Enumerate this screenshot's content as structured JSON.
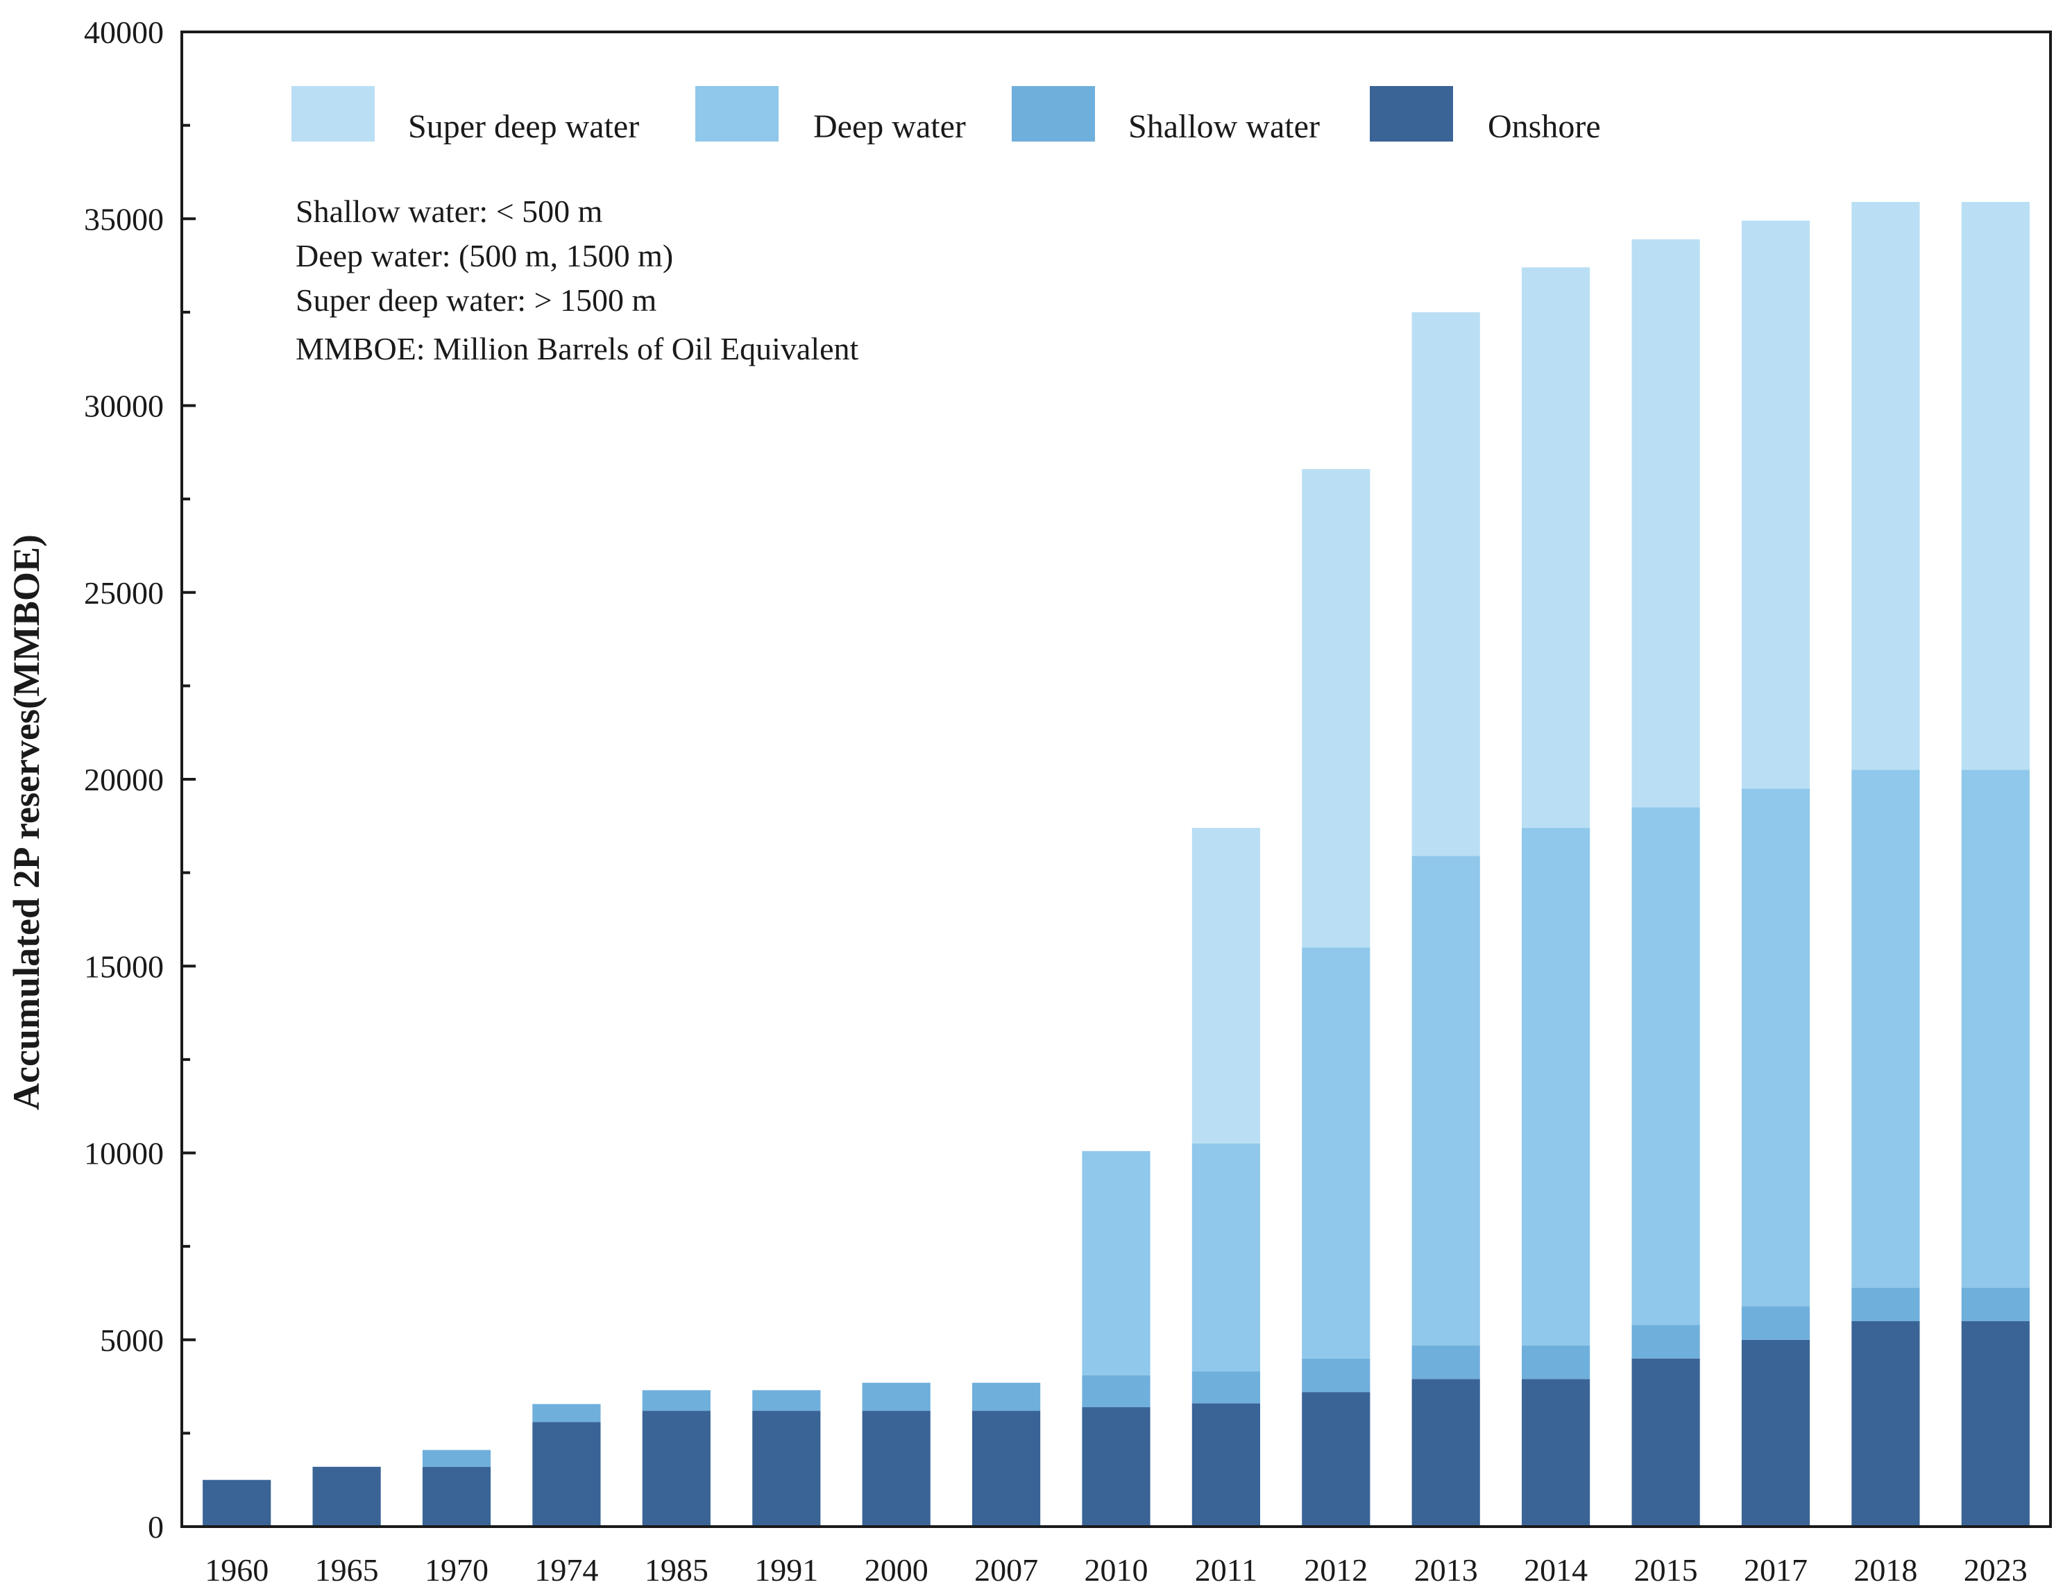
{
  "chart_data": {
    "type": "bar",
    "stacked": true,
    "categories": [
      "1960",
      "1965",
      "1970",
      "1974",
      "1985",
      "1991",
      "2000",
      "2007",
      "2010",
      "2011",
      "2012",
      "2013",
      "2014",
      "2015",
      "2017",
      "2018",
      "2023"
    ],
    "series": [
      {
        "name": "Onshore",
        "color": "#3a6496",
        "values": [
          1250,
          1600,
          1600,
          2800,
          3100,
          3100,
          3100,
          3100,
          3200,
          3300,
          3600,
          3950,
          3950,
          4500,
          5000,
          5500,
          5500
        ]
      },
      {
        "name": "Shallow water",
        "color": "#6fafdc",
        "values": [
          0,
          0,
          450,
          480,
          550,
          550,
          750,
          750,
          850,
          850,
          900,
          900,
          900,
          900,
          900,
          900,
          900
        ]
      },
      {
        "name": "Deep water",
        "color": "#8fc8ea",
        "values": [
          0,
          0,
          0,
          0,
          0,
          0,
          0,
          0,
          6000,
          6100,
          11000,
          13100,
          13850,
          13850,
          13850,
          13850,
          13850
        ]
      },
      {
        "name": "Super deep water",
        "color": "#badff4",
        "values": [
          0,
          0,
          0,
          0,
          0,
          0,
          0,
          0,
          0,
          8450,
          12800,
          14550,
          15000,
          15200,
          15200,
          15200,
          15200
        ]
      }
    ],
    "legend": {
      "position": "top-left",
      "order": [
        "Super deep water",
        "Deep water",
        "Shallow water",
        "Onshore"
      ]
    },
    "annotations": [
      "Shallow water: < 500 m",
      "Deep water: (500 m, 1500 m)",
      "Super deep water: > 1500 m",
      "MMBOE: Million Barrels of Oil Equivalent"
    ],
    "title": "",
    "xlabel": "",
    "ylabel": "Accumulated 2P reserves(MMBOE)",
    "ylim": [
      0,
      40000
    ],
    "yticks": [
      0,
      5000,
      10000,
      15000,
      20000,
      25000,
      30000,
      35000,
      40000
    ],
    "ytick_labels": [
      "0",
      "5000",
      "10000",
      "15000",
      "20000",
      "25000",
      "30000",
      "35000",
      "40000"
    ],
    "grid": false
  }
}
